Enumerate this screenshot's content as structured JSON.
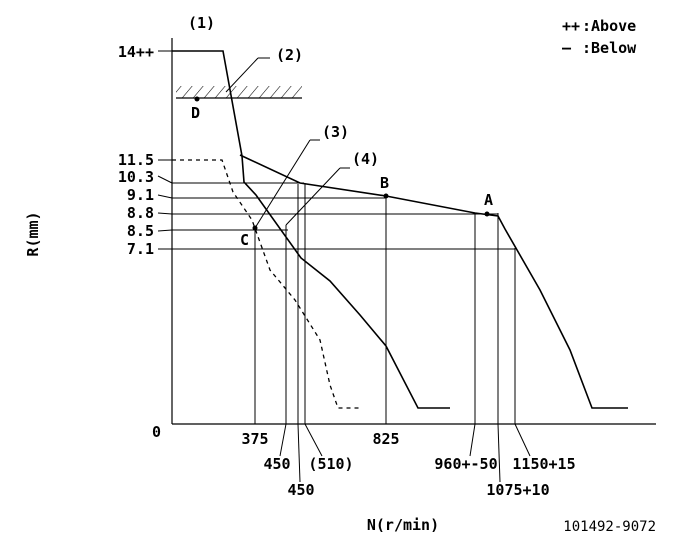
{
  "chart_data": {
    "type": "line",
    "xlabel": "N(r/min)",
    "ylabel": "R(mm)",
    "figure_id": "101492-9072",
    "legend": [
      {
        "symbol": "++",
        "text": ":Above"
      },
      {
        "symbol": "—",
        "text": ":Below"
      }
    ],
    "y_zero_label": "0",
    "y_tick_labels": [
      "14++",
      "11.5",
      "10.3",
      "9.1",
      "8.8",
      "8.5",
      "7.1"
    ],
    "x_tick_labels": [
      "375",
      "450",
      "(510)",
      "450",
      "825",
      "960+-50",
      "1075+10",
      "1150+15"
    ],
    "callouts": [
      "(1)",
      "(2)",
      "(3)",
      "(4)"
    ],
    "point_labels": [
      "A",
      "B",
      "C",
      "D"
    ],
    "series": [
      {
        "style": "solid",
        "points": [
          [
            0,
            14
          ],
          [
            275,
            14
          ],
          [
            370,
            11
          ],
          [
            420,
            10.3
          ],
          [
            450,
            9.9
          ],
          [
            510,
            9.1
          ],
          [
            825,
            8.8
          ],
          [
            960,
            8.8
          ],
          [
            1075,
            8.8
          ],
          [
            1150,
            7.1
          ],
          [
            1350,
            0.6
          ],
          [
            1450,
            0.6
          ]
        ]
      },
      {
        "style": "solid",
        "points": [
          [
            370,
            11
          ],
          [
            510,
            10.3
          ],
          [
            520,
            9.1
          ],
          [
            825,
            8.8
          ],
          [
            960,
            8.5
          ],
          [
            1075,
            8.5
          ]
        ]
      },
      {
        "style": "dashed",
        "points": [
          [
            0,
            11.5
          ],
          [
            225,
            11.5
          ],
          [
            300,
            9
          ],
          [
            400,
            7
          ],
          [
            550,
            3
          ],
          [
            620,
            0.6
          ],
          [
            700,
            0.6
          ]
        ]
      },
      {
        "style": "solid",
        "points": [
          [
            375,
            10.3
          ],
          [
            530,
            7.1
          ],
          [
            800,
            4
          ],
          [
            950,
            0.6
          ],
          [
            1050,
            0.6
          ]
        ]
      }
    ]
  }
}
